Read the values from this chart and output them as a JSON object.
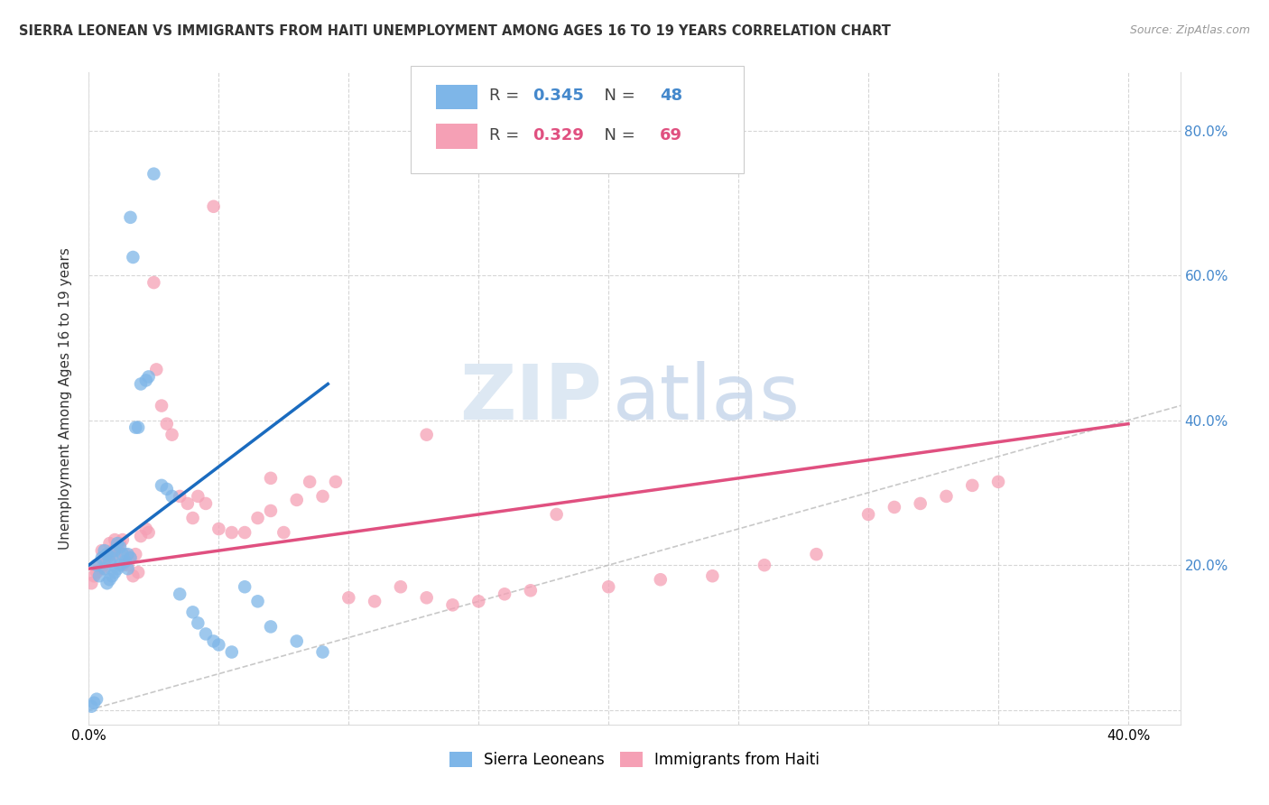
{
  "title": "SIERRA LEONEAN VS IMMIGRANTS FROM HAITI UNEMPLOYMENT AMONG AGES 16 TO 19 YEARS CORRELATION CHART",
  "source": "Source: ZipAtlas.com",
  "ylabel": "Unemployment Among Ages 16 to 19 years",
  "xlim": [
    0.0,
    0.42
  ],
  "ylim": [
    -0.02,
    0.88
  ],
  "xticks": [
    0.0,
    0.05,
    0.1,
    0.15,
    0.2,
    0.25,
    0.3,
    0.35,
    0.4
  ],
  "yticks": [
    0.0,
    0.2,
    0.4,
    0.6,
    0.8
  ],
  "xtick_labels": [
    "0.0%",
    "",
    "",
    "",
    "",
    "",
    "",
    "",
    "40.0%"
  ],
  "ytick_labels_left": [
    "",
    "",
    "",
    "",
    ""
  ],
  "ytick_labels_right": [
    "",
    "20.0%",
    "40.0%",
    "60.0%",
    "80.0%"
  ],
  "sierra_color": "#7eb6e8",
  "haiti_color": "#f5a0b5",
  "sierra_line_color": "#1a6bbf",
  "haiti_line_color": "#e05080",
  "diag_line_color": "#bbbbbb",
  "right_axis_color": "#4488cc",
  "legend_R_sierra": "0.345",
  "legend_N_sierra": "48",
  "legend_R_haiti": "0.329",
  "legend_N_haiti": "69",
  "watermark_zip": "ZIP",
  "watermark_atlas": "atlas",
  "sierra_x": [
    0.001,
    0.002,
    0.003,
    0.003,
    0.004,
    0.005,
    0.006,
    0.006,
    0.007,
    0.007,
    0.008,
    0.008,
    0.009,
    0.009,
    0.01,
    0.01,
    0.011,
    0.011,
    0.012,
    0.012,
    0.013,
    0.014,
    0.015,
    0.015,
    0.016,
    0.016,
    0.017,
    0.018,
    0.019,
    0.02,
    0.022,
    0.023,
    0.025,
    0.028,
    0.03,
    0.032,
    0.035,
    0.04,
    0.042,
    0.045,
    0.048,
    0.05,
    0.055,
    0.06,
    0.065,
    0.07,
    0.08,
    0.09
  ],
  "sierra_y": [
    0.005,
    0.01,
    0.015,
    0.2,
    0.185,
    0.21,
    0.195,
    0.22,
    0.175,
    0.215,
    0.18,
    0.205,
    0.185,
    0.21,
    0.19,
    0.22,
    0.195,
    0.23,
    0.2,
    0.225,
    0.215,
    0.205,
    0.195,
    0.215,
    0.21,
    0.68,
    0.625,
    0.39,
    0.39,
    0.45,
    0.455,
    0.46,
    0.74,
    0.31,
    0.305,
    0.295,
    0.16,
    0.135,
    0.12,
    0.105,
    0.095,
    0.09,
    0.08,
    0.17,
    0.15,
    0.115,
    0.095,
    0.08
  ],
  "haiti_x": [
    0.001,
    0.002,
    0.003,
    0.004,
    0.005,
    0.005,
    0.006,
    0.007,
    0.008,
    0.008,
    0.009,
    0.01,
    0.01,
    0.011,
    0.012,
    0.013,
    0.013,
    0.014,
    0.015,
    0.016,
    0.017,
    0.018,
    0.019,
    0.02,
    0.022,
    0.023,
    0.025,
    0.026,
    0.028,
    0.03,
    0.032,
    0.035,
    0.038,
    0.04,
    0.042,
    0.045,
    0.05,
    0.055,
    0.06,
    0.065,
    0.07,
    0.075,
    0.08,
    0.085,
    0.09,
    0.095,
    0.1,
    0.11,
    0.12,
    0.13,
    0.14,
    0.15,
    0.16,
    0.17,
    0.18,
    0.2,
    0.22,
    0.24,
    0.26,
    0.28,
    0.3,
    0.31,
    0.32,
    0.33,
    0.34,
    0.35,
    0.048,
    0.13,
    0.07
  ],
  "haiti_y": [
    0.175,
    0.185,
    0.19,
    0.2,
    0.195,
    0.22,
    0.2,
    0.21,
    0.215,
    0.23,
    0.22,
    0.215,
    0.235,
    0.225,
    0.23,
    0.235,
    0.2,
    0.215,
    0.2,
    0.21,
    0.185,
    0.215,
    0.19,
    0.24,
    0.25,
    0.245,
    0.59,
    0.47,
    0.42,
    0.395,
    0.38,
    0.295,
    0.285,
    0.265,
    0.295,
    0.285,
    0.25,
    0.245,
    0.245,
    0.265,
    0.275,
    0.245,
    0.29,
    0.315,
    0.295,
    0.315,
    0.155,
    0.15,
    0.17,
    0.155,
    0.145,
    0.15,
    0.16,
    0.165,
    0.27,
    0.17,
    0.18,
    0.185,
    0.2,
    0.215,
    0.27,
    0.28,
    0.285,
    0.295,
    0.31,
    0.315,
    0.695,
    0.38,
    0.32
  ],
  "sierra_line_x": [
    0.0,
    0.092
  ],
  "sierra_line_y": [
    0.2,
    0.45
  ],
  "haiti_line_x": [
    0.0,
    0.4
  ],
  "haiti_line_y": [
    0.195,
    0.395
  ]
}
